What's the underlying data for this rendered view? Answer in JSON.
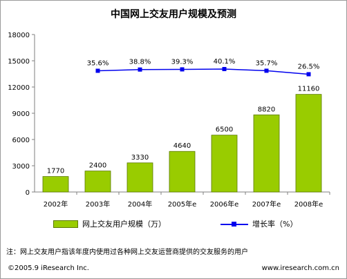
{
  "chart_data": {
    "type": "bar",
    "title": "中国网上交友用户规模及预测",
    "categories": [
      "2002年",
      "2003年",
      "2004年",
      "2005年e",
      "2006年e",
      "2007年e",
      "2008年e"
    ],
    "series": [
      {
        "name": "网上交友用户规模（万）",
        "type": "bar",
        "values": [
          1770,
          2400,
          3330,
          4640,
          6500,
          8820,
          11160
        ],
        "value_labels": [
          "1770",
          "2400",
          "3330",
          "4640",
          "6500",
          "8820",
          "11160"
        ],
        "color": "#99cc00"
      },
      {
        "name": "增长率（%）",
        "type": "line",
        "values": [
          null,
          35.6,
          38.8,
          39.3,
          40.1,
          35.7,
          26.5
        ],
        "value_labels": [
          "35.6%",
          "38.8%",
          "39.3%",
          "40.1%",
          "35.7%",
          "26.5%"
        ],
        "color": "#0000ee"
      }
    ],
    "ylim": [
      0,
      18000
    ],
    "yticks": [
      "0",
      "3000",
      "6000",
      "9000",
      "12000",
      "15000",
      "18000"
    ],
    "grid": false,
    "legend_position": "bottom"
  },
  "note": "注：网上交友用户指该年度内使用过各种网上交友运营商提供的交友服务的用户",
  "footer": {
    "copyright": "©2005.9 iResearch Inc.",
    "url": "www.iresearch.com.cn"
  }
}
